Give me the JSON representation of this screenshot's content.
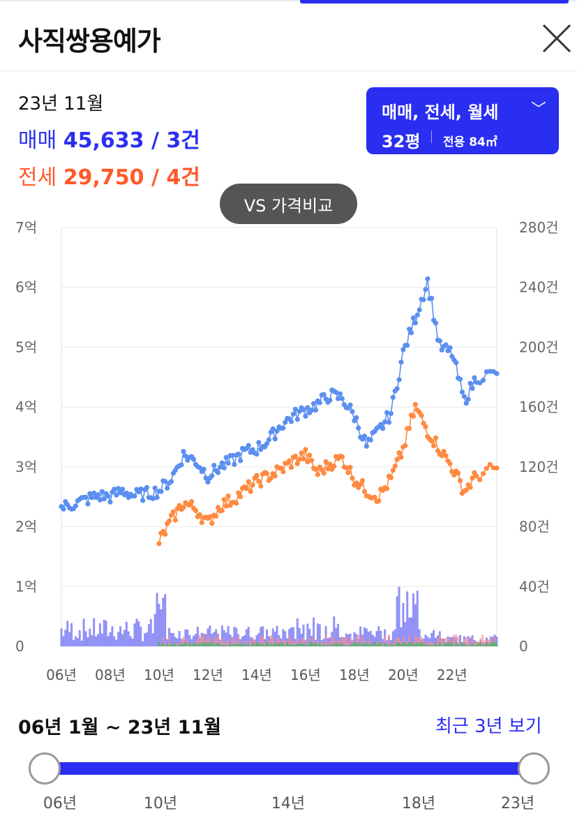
{
  "header": {
    "title": "사직쌍용예가"
  },
  "summary": {
    "date": "23년 11월",
    "sale_label": "매매",
    "sale_value": "45,633 / 3건",
    "jeonse_label": "전세",
    "jeonse_value": "29,750 / 4건"
  },
  "filter": {
    "type": "매매, 전세, 월세",
    "size": "32평",
    "area": "전용 84㎡"
  },
  "compare_button": "VS 가격비교",
  "range": {
    "text": "06년 1월 ~ 23년 11월",
    "recent_link": "최근 3년 보기",
    "labels": [
      "06년",
      "10년",
      "14년",
      "18년",
      "23년"
    ]
  },
  "colors": {
    "accent": "#2a2ef0",
    "sale_line": "#5b8ff0",
    "jeonse_line": "#ff8a40",
    "sale_bar": "#7f7ff5",
    "jeonse_bar": "#ff8a8a",
    "monthly_bar": "#4cb84c"
  },
  "chart_data": {
    "type": "line",
    "x_range": [
      "2006-01",
      "2023-11"
    ],
    "x_ticks": [
      "06년",
      "08년",
      "10년",
      "12년",
      "14년",
      "16년",
      "18년",
      "20년",
      "22년"
    ],
    "y_left": {
      "unit": "억",
      "range": [
        0,
        7
      ],
      "ticks": [
        "0",
        "1억",
        "2억",
        "3억",
        "4억",
        "5억",
        "6억",
        "7억"
      ]
    },
    "y_right": {
      "unit": "건",
      "range": [
        0,
        280
      ],
      "ticks": [
        "0",
        "40건",
        "80건",
        "120건",
        "160건",
        "200건",
        "240건",
        "280건"
      ]
    },
    "grid": true,
    "series": [
      {
        "name": "매매",
        "axis": "left",
        "points": [
          [
            "2006-01",
            2.32
          ],
          [
            "2006-07",
            2.38
          ],
          [
            "2007-01",
            2.45
          ],
          [
            "2007-07",
            2.52
          ],
          [
            "2008-01",
            2.5
          ],
          [
            "2008-07",
            2.6
          ],
          [
            "2009-01",
            2.52
          ],
          [
            "2009-07",
            2.55
          ],
          [
            "2010-01",
            2.6
          ],
          [
            "2010-07",
            2.8
          ],
          [
            "2011-01",
            3.2
          ],
          [
            "2011-07",
            3.1
          ],
          [
            "2012-01",
            2.85
          ],
          [
            "2012-07",
            3.0
          ],
          [
            "2013-01",
            3.1
          ],
          [
            "2013-07",
            3.25
          ],
          [
            "2014-01",
            3.3
          ],
          [
            "2014-07",
            3.45
          ],
          [
            "2015-01",
            3.7
          ],
          [
            "2015-07",
            3.85
          ],
          [
            "2016-01",
            3.95
          ],
          [
            "2016-07",
            4.05
          ],
          [
            "2017-01",
            4.2
          ],
          [
            "2017-07",
            4.15
          ],
          [
            "2018-01",
            3.85
          ],
          [
            "2018-07",
            3.35
          ],
          [
            "2019-01",
            3.6
          ],
          [
            "2019-07",
            3.9
          ],
          [
            "2020-01",
            4.9
          ],
          [
            "2020-07",
            5.5
          ],
          [
            "2021-01",
            6.1
          ],
          [
            "2021-07",
            5.0
          ],
          [
            "2022-01",
            4.9
          ],
          [
            "2022-07",
            4.1
          ],
          [
            "2023-01",
            4.5
          ],
          [
            "2023-11",
            4.56
          ]
        ]
      },
      {
        "name": "전세",
        "axis": "left",
        "points": [
          [
            "2010-01",
            1.75
          ],
          [
            "2010-07",
            2.1
          ],
          [
            "2011-01",
            2.4
          ],
          [
            "2011-07",
            2.3
          ],
          [
            "2012-01",
            2.05
          ],
          [
            "2012-07",
            2.35
          ],
          [
            "2013-01",
            2.45
          ],
          [
            "2013-07",
            2.6
          ],
          [
            "2014-01",
            2.75
          ],
          [
            "2014-07",
            2.85
          ],
          [
            "2015-01",
            2.95
          ],
          [
            "2015-07",
            3.1
          ],
          [
            "2016-01",
            3.2
          ],
          [
            "2016-07",
            2.9
          ],
          [
            "2017-01",
            3.05
          ],
          [
            "2017-07",
            3.15
          ],
          [
            "2018-01",
            2.8
          ],
          [
            "2018-07",
            2.6
          ],
          [
            "2019-01",
            2.5
          ],
          [
            "2019-07",
            2.8
          ],
          [
            "2020-01",
            3.3
          ],
          [
            "2020-07",
            4.0
          ],
          [
            "2021-01",
            3.6
          ],
          [
            "2021-07",
            3.3
          ],
          [
            "2022-01",
            3.0
          ],
          [
            "2022-07",
            2.6
          ],
          [
            "2023-01",
            2.85
          ],
          [
            "2023-11",
            2.98
          ]
        ]
      }
    ],
    "bar_series": [
      {
        "name": "매매 거래량",
        "axis": "right"
      },
      {
        "name": "전세 거래량",
        "axis": "right"
      },
      {
        "name": "월세 거래량",
        "axis": "right"
      }
    ]
  }
}
